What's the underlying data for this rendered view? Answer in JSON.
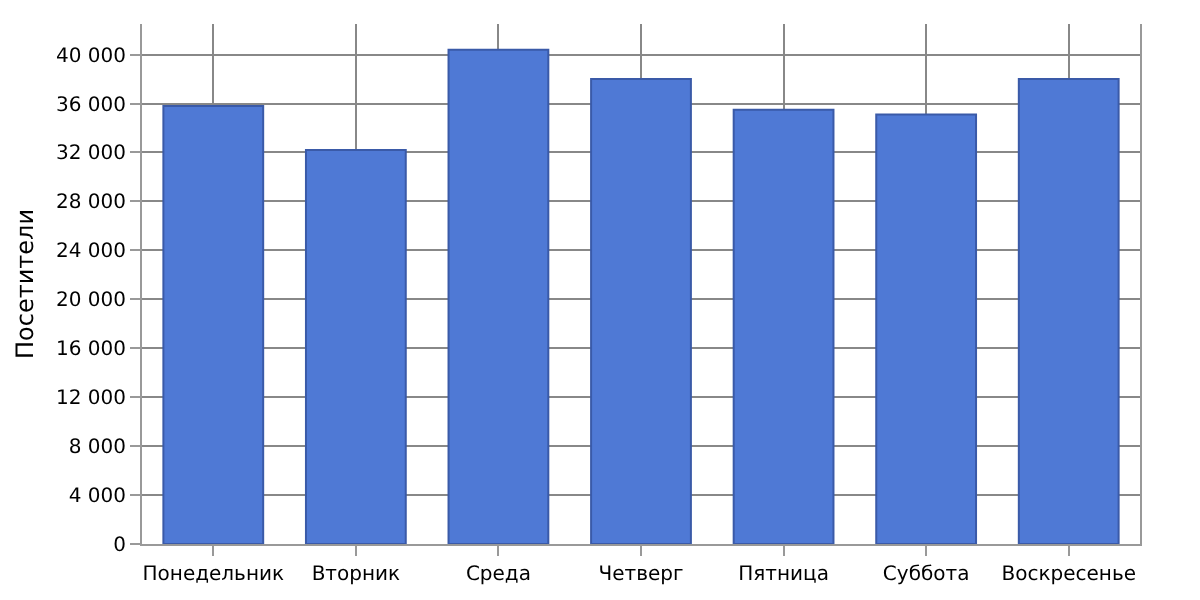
{
  "chart_data": {
    "type": "bar",
    "ylabel": "Посетители",
    "categories": [
      "Понедельник",
      "Вторник",
      "Среда",
      "Четверг",
      "Пятница",
      "Суббота",
      "Воскресенье"
    ],
    "values": [
      35800,
      32200,
      40400,
      38000,
      35500,
      35100,
      38000
    ],
    "color": "#4f79d5",
    "ylim": [
      0,
      42500
    ],
    "yticks": [
      {
        "value": 0,
        "label": "0"
      },
      {
        "value": 4000,
        "label": "4 000"
      },
      {
        "value": 8000,
        "label": "8 000"
      },
      {
        "value": 12000,
        "label": "12 000"
      },
      {
        "value": 16000,
        "label": "16 000"
      },
      {
        "value": 20000,
        "label": "20 000"
      },
      {
        "value": 24000,
        "label": "24 000"
      },
      {
        "value": 28000,
        "label": "28 000"
      },
      {
        "value": 32000,
        "label": "32 000"
      },
      {
        "value": 36000,
        "label": "36 000"
      },
      {
        "value": 40000,
        "label": "40 000"
      }
    ],
    "grid": true
  }
}
